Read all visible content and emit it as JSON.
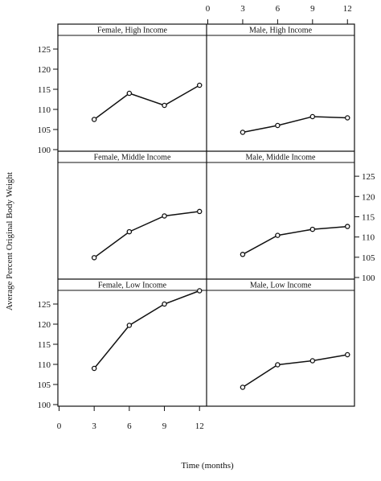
{
  "chart_data": {
    "type": "line",
    "xlabel": "Time (months)",
    "ylabel": "Average Percent Original Body Weight",
    "xticks": [
      "0",
      "3",
      "6",
      "9",
      "12"
    ],
    "yticks": [
      "100",
      "105",
      "110",
      "115",
      "120",
      "125"
    ],
    "xlim": [
      0,
      12.5
    ],
    "ylim": [
      100,
      128
    ],
    "grid": false,
    "legend": "none",
    "line_color": "#111111",
    "marker": "open-circle",
    "panels": [
      {
        "title": "Female,  High Income",
        "x": [
          3,
          6,
          9,
          12
        ],
        "y": [
          107.5,
          114,
          111,
          116
        ]
      },
      {
        "title": "Male,  High Income",
        "x": [
          3,
          6,
          9,
          12
        ],
        "y": [
          104.3,
          106,
          108.2,
          107.9
        ]
      },
      {
        "title": "Female,  Middle Income",
        "x": [
          3,
          6,
          9,
          12
        ],
        "y": [
          104.9,
          111.3,
          115.2,
          116.3
        ]
      },
      {
        "title": "Male,  Middle Income",
        "x": [
          3,
          6,
          9,
          12
        ],
        "y": [
          105.7,
          110.4,
          111.9,
          112.6
        ]
      },
      {
        "title": "Female,  Low Income",
        "x": [
          3,
          6,
          9,
          12
        ],
        "y": [
          109,
          119.7,
          125,
          128.3
        ]
      },
      {
        "title": "Male,  Low Income",
        "x": [
          3,
          6,
          9,
          12
        ],
        "y": [
          104.3,
          109.9,
          110.9,
          112.4
        ]
      }
    ]
  }
}
